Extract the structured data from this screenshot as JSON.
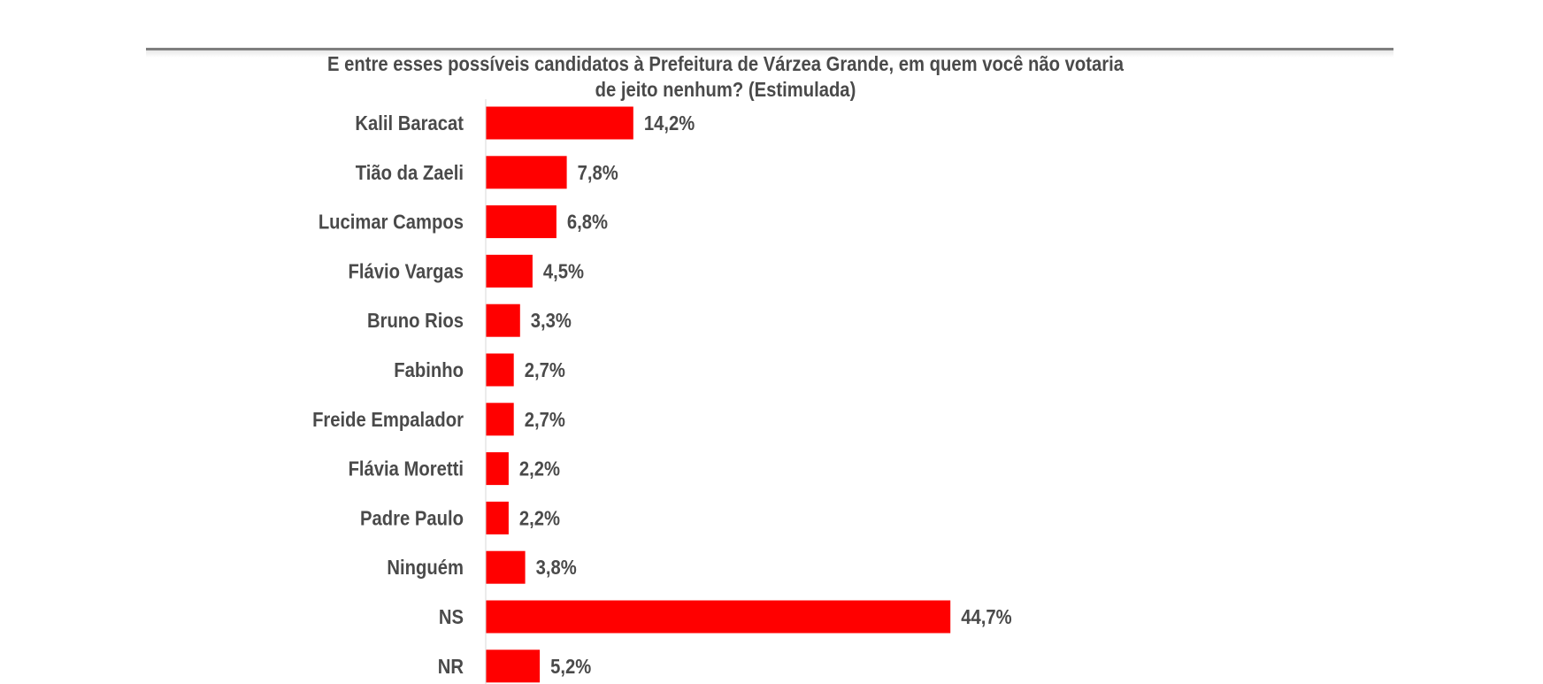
{
  "chart_data": {
    "type": "bar",
    "orientation": "horizontal",
    "title": "E entre esses possíveis candidatos à Prefeitura de Várzea Grande, em quem você não votaria de jeito nenhum? (Estimulada)",
    "title_lines": [
      "E entre esses possíveis candidatos à Prefeitura de Várzea Grande, em quem você não votaria",
      "de jeito nenhum? (Estimulada)"
    ],
    "categories": [
      "Kalil Baracat",
      "Tião da Zaeli",
      "Lucimar Campos",
      "Flávio Vargas",
      "Bruno Rios",
      "Fabinho",
      "Freide Empalador",
      "Flávia Moretti",
      "Padre Paulo",
      "Ninguém",
      "NS",
      "NR"
    ],
    "values": [
      14.2,
      7.8,
      6.8,
      4.5,
      3.3,
      2.7,
      2.7,
      2.2,
      2.2,
      3.8,
      44.7,
      5.2
    ],
    "value_labels": [
      "14,2%",
      "7,8%",
      "6,8%",
      "4,5%",
      "3,3%",
      "2,7%",
      "2,7%",
      "2,2%",
      "2,2%",
      "3,8%",
      "44,7%",
      "5,2%"
    ],
    "xlabel": "",
    "ylabel": "",
    "grid": false,
    "legend": "none",
    "bar_color": "#ff0000"
  }
}
